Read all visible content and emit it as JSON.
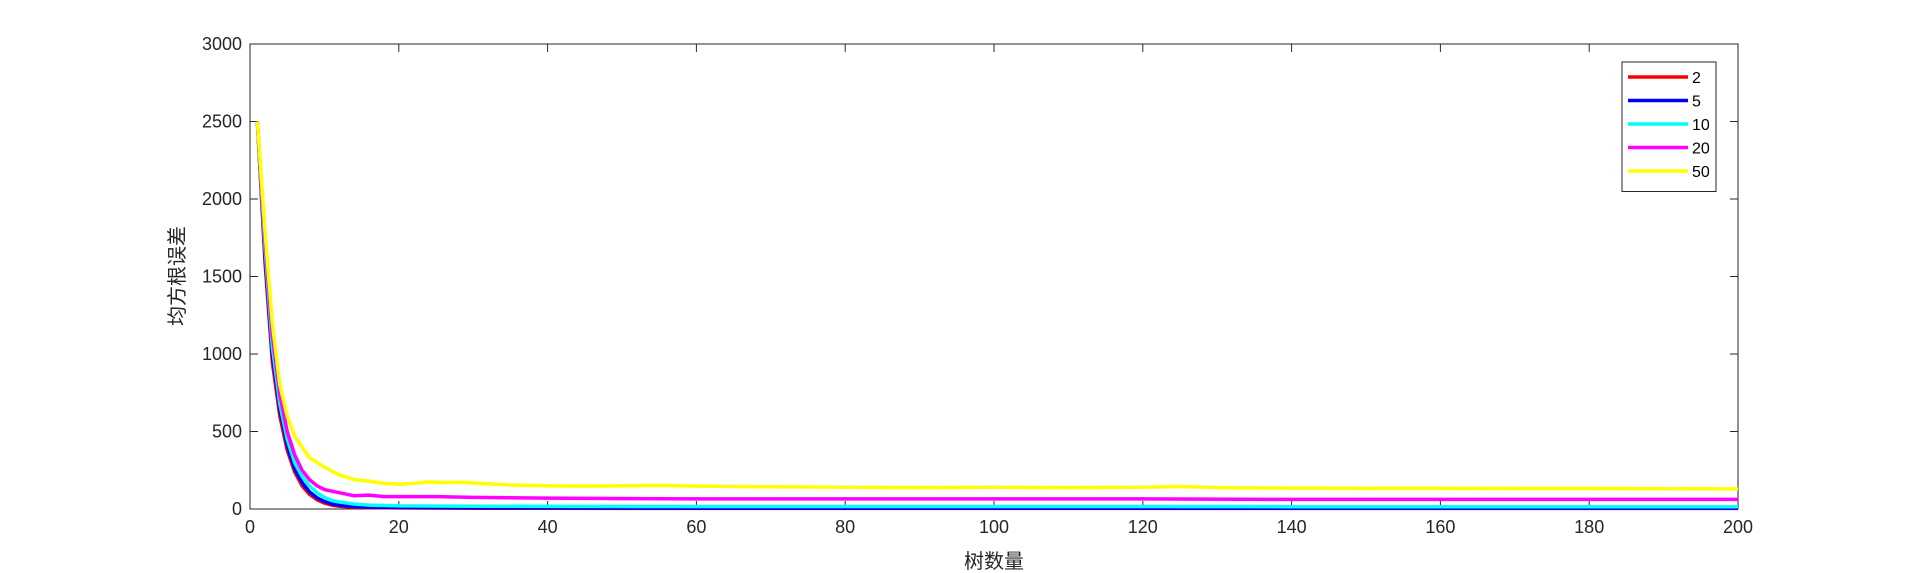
{
  "chart_data": {
    "type": "line",
    "xlabel": "树数量",
    "ylabel": "均方根误差",
    "xlim": [
      0,
      200
    ],
    "ylim": [
      0,
      3000
    ],
    "xticks": [
      0,
      20,
      40,
      60,
      80,
      100,
      120,
      140,
      160,
      180,
      200
    ],
    "yticks": [
      0,
      500,
      1000,
      1500,
      2000,
      2500,
      3000
    ],
    "grid": false,
    "legend_position": "top-right",
    "series": [
      {
        "name": "2",
        "color": "#ff0000",
        "x": [
          1,
          2,
          3,
          4,
          5,
          6,
          7,
          8,
          9,
          10,
          11,
          12,
          14,
          16,
          20,
          30,
          40,
          60,
          80,
          100,
          120,
          140,
          160,
          180,
          200
        ],
        "y": [
          2500,
          1600,
          950,
          600,
          380,
          240,
          150,
          95,
          60,
          38,
          25,
          18,
          12,
          9,
          7,
          5,
          5,
          4,
          4,
          4,
          4,
          4,
          4,
          4,
          4
        ]
      },
      {
        "name": "5",
        "color": "#0000ff",
        "x": [
          1,
          2,
          3,
          4,
          5,
          6,
          7,
          8,
          9,
          10,
          11,
          12,
          14,
          16,
          20,
          30,
          40,
          60,
          80,
          100,
          120,
          140,
          160,
          180,
          200
        ],
        "y": [
          2500,
          1650,
          1000,
          640,
          410,
          260,
          170,
          110,
          72,
          48,
          32,
          24,
          16,
          12,
          10,
          8,
          7,
          6,
          6,
          6,
          6,
          6,
          6,
          6,
          6
        ]
      },
      {
        "name": "10",
        "color": "#00ffff",
        "x": [
          1,
          2,
          3,
          4,
          5,
          6,
          7,
          8,
          9,
          10,
          11,
          12,
          14,
          16,
          20,
          30,
          40,
          60,
          80,
          100,
          120,
          140,
          160,
          180,
          200
        ],
        "y": [
          2500,
          1700,
          1050,
          680,
          450,
          300,
          210,
          150,
          105,
          75,
          55,
          45,
          32,
          25,
          20,
          18,
          17,
          16,
          16,
          16,
          16,
          15,
          15,
          15,
          15
        ]
      },
      {
        "name": "20",
        "color": "#ff00ff",
        "x": [
          1,
          2,
          3,
          4,
          5,
          6,
          7,
          8,
          9,
          10,
          12,
          14,
          16,
          18,
          20,
          25,
          30,
          40,
          60,
          80,
          100,
          120,
          140,
          160,
          180,
          200
        ],
        "y": [
          2500,
          1750,
          1120,
          740,
          500,
          350,
          250,
          190,
          150,
          125,
          105,
          85,
          90,
          80,
          80,
          80,
          75,
          70,
          65,
          65,
          65,
          65,
          62,
          62,
          62,
          62
        ]
      },
      {
        "name": "50",
        "color": "#ffff00",
        "x": [
          1,
          2,
          3,
          4,
          5,
          6,
          7,
          8,
          9,
          10,
          12,
          14,
          16,
          18,
          20,
          22,
          24,
          26,
          28,
          30,
          35,
          40,
          45,
          50,
          55,
          60,
          70,
          80,
          90,
          100,
          110,
          120,
          125,
          130,
          140,
          150,
          160,
          180,
          200
        ],
        "y": [
          2500,
          1800,
          1200,
          800,
          600,
          470,
          400,
          330,
          300,
          270,
          220,
          190,
          180,
          165,
          160,
          165,
          175,
          170,
          172,
          168,
          155,
          150,
          148,
          150,
          152,
          148,
          143,
          140,
          138,
          140,
          138,
          140,
          145,
          138,
          135,
          133,
          133,
          132,
          130
        ]
      }
    ]
  }
}
